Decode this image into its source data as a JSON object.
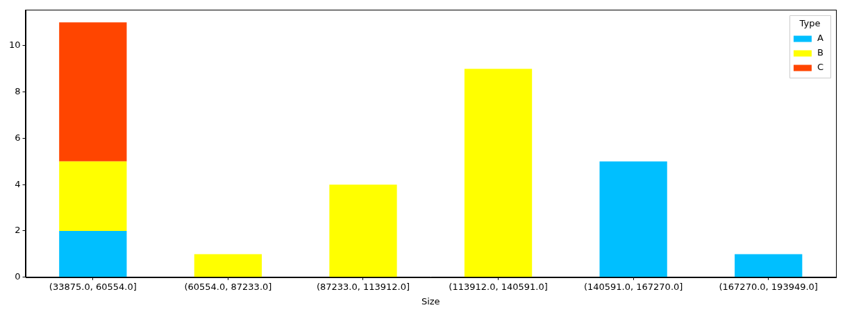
{
  "chart_data": {
    "type": "bar",
    "stacked": true,
    "x_label": "Size",
    "categories": [
      "(33875.0, 60554.0]",
      "(60554.0, 87233.0]",
      "(87233.0, 113912.0]",
      "(113912.0, 140591.0]",
      "(140591.0, 167270.0]",
      "(167270.0, 193949.0]"
    ],
    "series": [
      {
        "name": "A",
        "color": "#00bfff",
        "values": [
          2,
          0,
          0,
          0,
          5,
          1
        ]
      },
      {
        "name": "B",
        "color": "#ffff00",
        "values": [
          3,
          1,
          4,
          9,
          0,
          0
        ]
      },
      {
        "name": "C",
        "color": "#ff4500",
        "values": [
          6,
          0,
          0,
          0,
          0,
          0
        ]
      }
    ],
    "ylim": [
      0,
      11.55
    ],
    "yticks": [
      0,
      2,
      4,
      6,
      8,
      10
    ],
    "grid": false,
    "legend": "top-right",
    "legend_title": "Type"
  }
}
